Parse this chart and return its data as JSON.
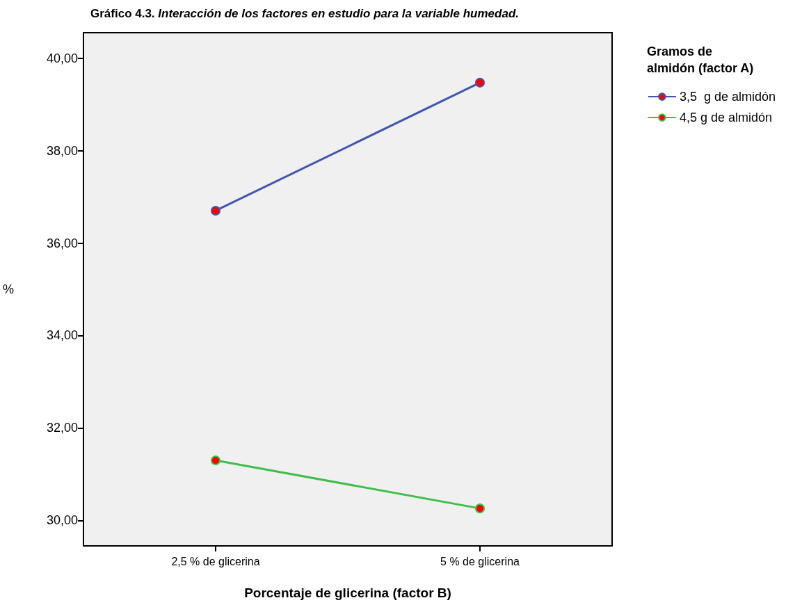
{
  "chart_data": {
    "type": "line",
    "title": "Gráfico 4.3. Interacción de los factores en estudio para la variable humedad.",
    "xlabel": "Porcentaje de glicerina (factor B)",
    "ylabel": "%",
    "legend_title": "Gramos de almidón (factor A)",
    "categories": [
      "2,5 % de glicerina",
      "5 % de glicerina"
    ],
    "series": [
      {
        "name": "3,5  g de almidón",
        "color": "#3f57b0",
        "values": [
          36.7,
          39.47
        ]
      },
      {
        "name": "4,5 g de almidón",
        "color": "#3fbf4a",
        "values": [
          31.3,
          30.26
        ]
      }
    ],
    "ylim": [
      29.45,
      40.55
    ],
    "yticks": [
      {
        "value": 30,
        "label": "30,00"
      },
      {
        "value": 32,
        "label": "32,00"
      },
      {
        "value": 34,
        "label": "34,00"
      },
      {
        "value": 36,
        "label": "36,00"
      },
      {
        "value": 38,
        "label": "38,00"
      },
      {
        "value": 40,
        "label": "40,00"
      }
    ],
    "grid": false,
    "legend": "top right",
    "marker": "circle",
    "line_style": "solid"
  }
}
